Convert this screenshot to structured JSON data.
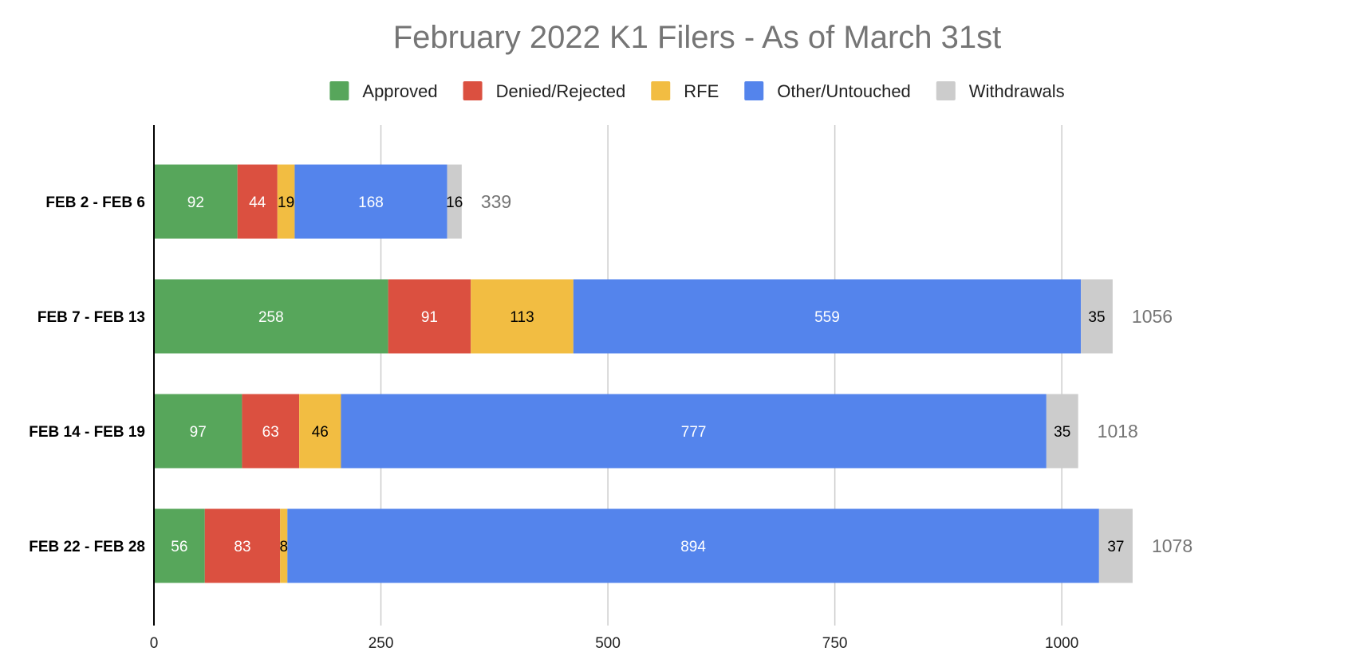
{
  "chart_data": {
    "type": "bar",
    "orientation": "horizontal",
    "stacked": true,
    "title": "February 2022 K1 Filers - As of March 31st",
    "categories": [
      "FEB 2 - FEB 6",
      "FEB 7 - FEB 13",
      "FEB 14 - FEB 19",
      "FEB 22 - FEB 28"
    ],
    "series": [
      {
        "name": "Approved",
        "color": "#57a65b",
        "label_color": "#ffffff",
        "values": [
          92,
          258,
          97,
          56
        ]
      },
      {
        "name": "Denied/Rejected",
        "color": "#db5040",
        "label_color": "#ffffff",
        "values": [
          44,
          91,
          63,
          83
        ]
      },
      {
        "name": "RFE",
        "color": "#f2bd42",
        "label_color": "#000000",
        "values": [
          19,
          113,
          46,
          8
        ]
      },
      {
        "name": "Other/Untouched",
        "color": "#5484ec",
        "label_color": "#ffffff",
        "values": [
          168,
          559,
          777,
          894
        ]
      },
      {
        "name": "Withdrawals",
        "color": "#cccccc",
        "label_color": "#000000",
        "values": [
          16,
          35,
          35,
          37
        ]
      }
    ],
    "totals": [
      339,
      1056,
      1018,
      1078
    ],
    "xlim": [
      0,
      1100
    ],
    "xticks": [
      0,
      250,
      500,
      750,
      1000
    ],
    "grid": true,
    "legend": "top"
  }
}
